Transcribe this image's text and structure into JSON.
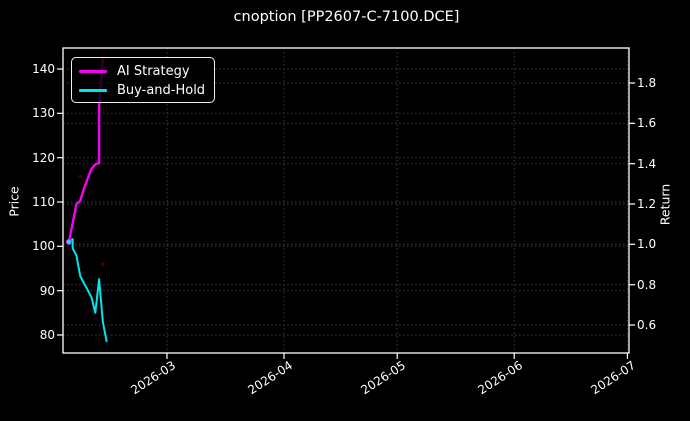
{
  "title": "cnoption [PP2607-C-7100.DCE]",
  "axes": {
    "left": {
      "label": "Price",
      "tick_labels": [
        "140",
        "130",
        "120",
        "110",
        "100",
        "90",
        "80"
      ]
    },
    "right": {
      "label": "Return",
      "tick_labels": [
        "1.8",
        "1.6",
        "1.4",
        "1.2",
        "1.0",
        "0.8",
        "0.6"
      ]
    },
    "x": {
      "tick_labels": [
        "2026-03",
        "2026-04",
        "2026-05",
        "2026-06",
        "2026-07"
      ]
    }
  },
  "legend": {
    "items": [
      {
        "label": "AI Strategy",
        "color": "#f400f4"
      },
      {
        "label": "Buy-and-Hold",
        "color": "#00e5ee"
      }
    ]
  },
  "colors": {
    "background": "#000000",
    "spine": "#ffffff",
    "grid": "#3c3c3c",
    "text": "#ffffff",
    "ai_strategy": "#f400f4",
    "buy_and_hold": "#00e5ee",
    "faint_marker": "#420000"
  },
  "chart_data": {
    "type": "line",
    "title": "cnoption [PP2607-C-7100.DCE]",
    "xlabel": "",
    "x_tick_labels": [
      "2026-03",
      "2026-04",
      "2026-05",
      "2026-06",
      "2026-07"
    ],
    "left_axis": {
      "label": "Price",
      "ticks": [
        140,
        130,
        120,
        110,
        100,
        90,
        80
      ],
      "approx_range": [
        76,
        145
      ]
    },
    "right_axis": {
      "label": "Return",
      "ticks": [
        1.8,
        1.6,
        1.4,
        1.2,
        1.0,
        0.8,
        0.6
      ],
      "approx_range": [
        0.47,
        1.97
      ]
    },
    "grid": "dotted dark-gray, horizontal lines for both y axes plus monthly vertical lines",
    "legend_position": "upper left",
    "note": "Both series plotted on Price axis; Return axis is price/100. Data spans ~2026-02-03 to 2026-02-13, well left of first month tick.",
    "series": [
      {
        "name": "AI Strategy",
        "color": "#f400f4",
        "axis": "left",
        "start_marker": true,
        "points": [
          [
            "2026-02-03",
            101.0
          ],
          [
            "2026-02-05",
            109.5
          ],
          [
            "2026-02-06",
            110.3
          ],
          [
            "2026-02-07",
            113.0
          ],
          [
            "2026-02-08",
            115.3
          ],
          [
            "2026-02-09",
            117.5
          ],
          [
            "2026-02-10",
            118.5
          ],
          [
            "2026-02-11",
            118.8
          ],
          [
            "2026-02-11",
            131.5
          ],
          [
            "2026-02-12",
            142.5
          ]
        ]
      },
      {
        "name": "Buy-and-Hold",
        "color": "#00e5ee",
        "axis": "left",
        "start_marker": true,
        "points": [
          [
            "2026-02-03",
            101.0
          ],
          [
            "2026-02-04",
            101.6
          ],
          [
            "2026-02-04",
            99.5
          ],
          [
            "2026-02-05",
            98.0
          ],
          [
            "2026-02-06",
            93.3
          ],
          [
            "2026-02-07",
            91.7
          ],
          [
            "2026-02-09",
            88.5
          ],
          [
            "2026-02-10",
            85.0
          ],
          [
            "2026-02-11",
            92.6
          ],
          [
            "2026-02-12",
            83.0
          ],
          [
            "2026-02-13",
            78.6
          ]
        ]
      }
    ],
    "faint_markers": [
      {
        "date": "2026-02-06",
        "price": 115.7
      },
      {
        "date": "2026-02-12",
        "price": 96.0
      }
    ]
  }
}
